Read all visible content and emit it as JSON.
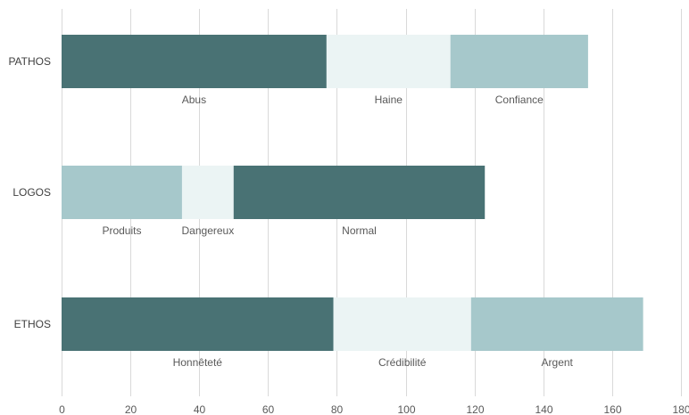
{
  "chart_data": {
    "type": "bar",
    "orientation": "horizontal",
    "stacked": true,
    "title": "",
    "xlabel": "",
    "ylabel": "",
    "xlim": [
      0,
      180
    ],
    "x_ticks": [
      0,
      20,
      40,
      60,
      80,
      100,
      120,
      140,
      160,
      180
    ],
    "grid": "vertical",
    "legend": "none",
    "colors": {
      "dark": "#497274",
      "pale": "#ebf4f4",
      "light": "#a6c8cb"
    },
    "categories": [
      "PATHOS",
      "LOGOS",
      "ETHOS"
    ],
    "bars": [
      {
        "category": "PATHOS",
        "segments": [
          {
            "label": "Abus",
            "value": 77,
            "color": "dark"
          },
          {
            "label": "Haine",
            "value": 36,
            "color": "pale"
          },
          {
            "label": "Confiance",
            "value": 40,
            "color": "light"
          }
        ]
      },
      {
        "category": "LOGOS",
        "segments": [
          {
            "label": "Produits",
            "value": 35,
            "color": "light"
          },
          {
            "label": "Dangereux",
            "value": 15,
            "color": "pale"
          },
          {
            "label": "Normal",
            "value": 73,
            "color": "dark"
          }
        ]
      },
      {
        "category": "ETHOS",
        "segments": [
          {
            "label": "Honnêteté",
            "value": 79,
            "color": "dark"
          },
          {
            "label": "Crédibilité",
            "value": 40,
            "color": "pale"
          },
          {
            "label": "Argent",
            "value": 50,
            "color": "light"
          }
        ]
      }
    ]
  }
}
